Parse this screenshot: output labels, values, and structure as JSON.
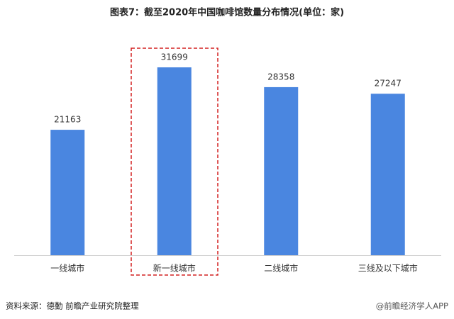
{
  "chart_data": {
    "type": "bar",
    "title": "图表7：截至2020年中国咖啡馆数量分布情况(单位：家)",
    "categories": [
      "一线城市",
      "新一线城市",
      "二线城市",
      "三线及以下城市"
    ],
    "values": [
      21163,
      31699,
      28358,
      27247
    ],
    "color": "#4a86e0",
    "source": "资料来源：德勤 前瞻产业研究院整理",
    "watermark": "@前瞻经济学人APP"
  }
}
